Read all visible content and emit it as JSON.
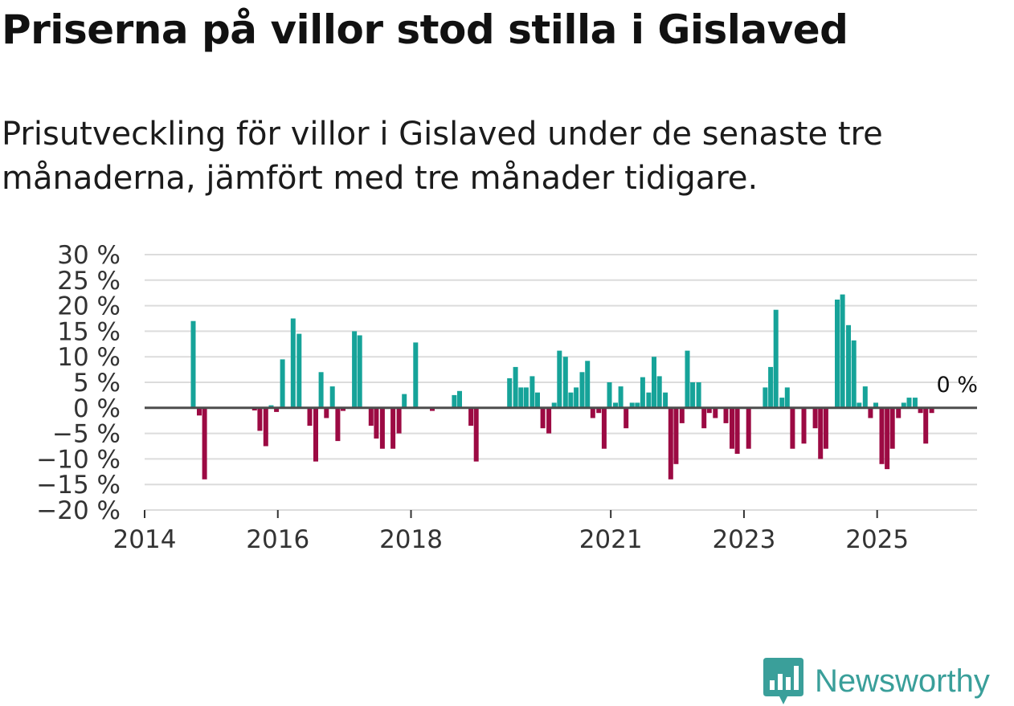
{
  "title": "Priserna på villor stod stilla i Gislaved",
  "subtitle": "Prisutveckling för villor i Gislaved under de senaste tre månaderna, jämfört med tre månader tidigare.",
  "brand": {
    "name": "Newsworthy",
    "icon": "newsworthy-logo-icon"
  },
  "colors": {
    "positive": "#16a399",
    "negative": "#9c0a43",
    "grid": "#dcdcdc",
    "zero_line": "#4d4d4d",
    "brand": "#3a9f9a"
  },
  "chart_data": {
    "type": "bar",
    "title": "Priserna på villor stod stilla i Gislaved",
    "xlabel": "",
    "ylabel": "",
    "ylim": [
      -20,
      30
    ],
    "y_ticks": [
      30,
      25,
      20,
      15,
      10,
      5,
      0,
      -5,
      -10,
      -15,
      -20
    ],
    "y_tick_labels": [
      "30 %",
      "25 %",
      "20 %",
      "15 %",
      "10 %",
      "5 %",
      "0 %",
      "−5 %",
      "−10 %",
      "−15 %",
      "−20 %"
    ],
    "x_range": [
      2014.0,
      2026.5
    ],
    "x_ticks": [
      2014,
      2016,
      2018,
      2021,
      2023,
      2025
    ],
    "x_tick_labels": [
      "2014",
      "2016",
      "2018",
      "2021",
      "2023",
      "2025"
    ],
    "annotation": "0 %",
    "series": [
      {
        "name": "Prisutveckling",
        "points": [
          {
            "x": 2014.73,
            "v": 17
          },
          {
            "x": 2014.82,
            "v": -1.5
          },
          {
            "x": 2014.9,
            "v": -14
          },
          {
            "x": 2015.65,
            "v": -0.5
          },
          {
            "x": 2015.73,
            "v": -4.5
          },
          {
            "x": 2015.82,
            "v": -7.5
          },
          {
            "x": 2015.9,
            "v": 0.5
          },
          {
            "x": 2015.98,
            "v": -0.8
          },
          {
            "x": 2016.07,
            "v": 9.5
          },
          {
            "x": 2016.23,
            "v": 17.5
          },
          {
            "x": 2016.32,
            "v": 14.5
          },
          {
            "x": 2016.48,
            "v": -3.5
          },
          {
            "x": 2016.57,
            "v": -10.5
          },
          {
            "x": 2016.65,
            "v": 7
          },
          {
            "x": 2016.73,
            "v": -2
          },
          {
            "x": 2016.82,
            "v": 4.2
          },
          {
            "x": 2016.9,
            "v": -6.5
          },
          {
            "x": 2016.98,
            "v": -0.6
          },
          {
            "x": 2017.15,
            "v": 15
          },
          {
            "x": 2017.23,
            "v": 14.2
          },
          {
            "x": 2017.4,
            "v": -3.5
          },
          {
            "x": 2017.48,
            "v": -6
          },
          {
            "x": 2017.57,
            "v": -8
          },
          {
            "x": 2017.73,
            "v": -8
          },
          {
            "x": 2017.82,
            "v": -5
          },
          {
            "x": 2017.9,
            "v": 2.7
          },
          {
            "x": 2018.07,
            "v": 12.8
          },
          {
            "x": 2018.32,
            "v": -0.6
          },
          {
            "x": 2018.65,
            "v": 2.5
          },
          {
            "x": 2018.73,
            "v": 3.3
          },
          {
            "x": 2018.9,
            "v": -3.5
          },
          {
            "x": 2018.98,
            "v": -10.5
          },
          {
            "x": 2019.48,
            "v": 5.8
          },
          {
            "x": 2019.57,
            "v": 8
          },
          {
            "x": 2019.65,
            "v": 4
          },
          {
            "x": 2019.73,
            "v": 4
          },
          {
            "x": 2019.82,
            "v": 6.2
          },
          {
            "x": 2019.9,
            "v": 3
          },
          {
            "x": 2019.98,
            "v": -4
          },
          {
            "x": 2020.07,
            "v": -5
          },
          {
            "x": 2020.15,
            "v": 1
          },
          {
            "x": 2020.23,
            "v": 11.2
          },
          {
            "x": 2020.32,
            "v": 10
          },
          {
            "x": 2020.4,
            "v": 3
          },
          {
            "x": 2020.48,
            "v": 4
          },
          {
            "x": 2020.57,
            "v": 7
          },
          {
            "x": 2020.65,
            "v": 9.2
          },
          {
            "x": 2020.73,
            "v": -2
          },
          {
            "x": 2020.82,
            "v": -1
          },
          {
            "x": 2020.9,
            "v": -8
          },
          {
            "x": 2020.98,
            "v": 5
          },
          {
            "x": 2021.07,
            "v": 1
          },
          {
            "x": 2021.15,
            "v": 4.2
          },
          {
            "x": 2021.23,
            "v": -4
          },
          {
            "x": 2021.32,
            "v": 1
          },
          {
            "x": 2021.4,
            "v": 1
          },
          {
            "x": 2021.48,
            "v": 6
          },
          {
            "x": 2021.57,
            "v": 3
          },
          {
            "x": 2021.65,
            "v": 10
          },
          {
            "x": 2021.73,
            "v": 6.2
          },
          {
            "x": 2021.82,
            "v": 3
          },
          {
            "x": 2021.9,
            "v": -14
          },
          {
            "x": 2021.98,
            "v": -11
          },
          {
            "x": 2022.07,
            "v": -3
          },
          {
            "x": 2022.15,
            "v": 11.2
          },
          {
            "x": 2022.23,
            "v": 5
          },
          {
            "x": 2022.32,
            "v": 5
          },
          {
            "x": 2022.4,
            "v": -4
          },
          {
            "x": 2022.48,
            "v": -1
          },
          {
            "x": 2022.57,
            "v": -2
          },
          {
            "x": 2022.73,
            "v": -3
          },
          {
            "x": 2022.82,
            "v": -8
          },
          {
            "x": 2022.9,
            "v": -9
          },
          {
            "x": 2023.07,
            "v": -8
          },
          {
            "x": 2023.32,
            "v": 4
          },
          {
            "x": 2023.4,
            "v": 8
          },
          {
            "x": 2023.48,
            "v": 19.2
          },
          {
            "x": 2023.57,
            "v": 2
          },
          {
            "x": 2023.65,
            "v": 4
          },
          {
            "x": 2023.73,
            "v": -8
          },
          {
            "x": 2023.9,
            "v": -7
          },
          {
            "x": 2024.07,
            "v": -4
          },
          {
            "x": 2024.15,
            "v": -10
          },
          {
            "x": 2024.23,
            "v": -8
          },
          {
            "x": 2024.4,
            "v": 21.2
          },
          {
            "x": 2024.48,
            "v": 22.2
          },
          {
            "x": 2024.57,
            "v": 16.2
          },
          {
            "x": 2024.65,
            "v": 13.2
          },
          {
            "x": 2024.73,
            "v": 1
          },
          {
            "x": 2024.82,
            "v": 4.2
          },
          {
            "x": 2024.9,
            "v": -2
          },
          {
            "x": 2024.98,
            "v": 1
          },
          {
            "x": 2025.07,
            "v": -11
          },
          {
            "x": 2025.15,
            "v": -12
          },
          {
            "x": 2025.23,
            "v": -8
          },
          {
            "x": 2025.32,
            "v": -2
          },
          {
            "x": 2025.4,
            "v": 1
          },
          {
            "x": 2025.48,
            "v": 2
          },
          {
            "x": 2025.57,
            "v": 2
          },
          {
            "x": 2025.65,
            "v": -1
          },
          {
            "x": 2025.73,
            "v": -7
          },
          {
            "x": 2025.82,
            "v": -1
          },
          {
            "x": 2025.9,
            "v": 0
          }
        ]
      }
    ]
  }
}
